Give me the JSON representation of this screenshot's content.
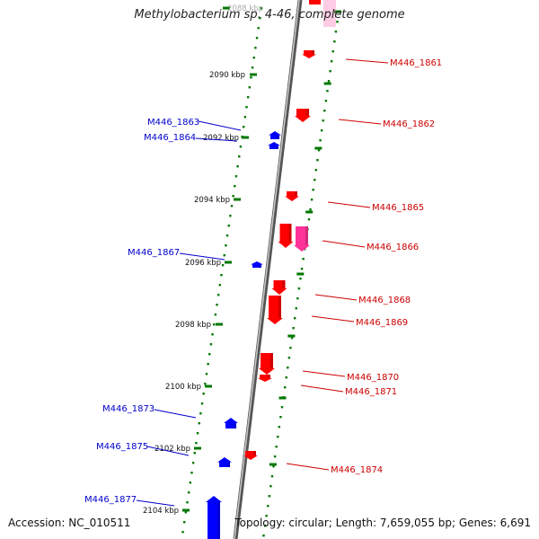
{
  "title": "Methylobacterium sp. 4-46, complete genome",
  "footer": {
    "accession": "Accession: NC_010511",
    "topology": "Topology: circular; Length: 7,659,055 bp; Genes: 6,691"
  },
  "colors": {
    "forward_gene": "#ff0000",
    "forward_rna": "#ff3399",
    "reverse_gene": "#0000ff",
    "tick": "#007700",
    "axis": "#888888",
    "forward_label": "#cc0000",
    "reverse_label": "#0000cc"
  },
  "kbp_ticks": [
    {
      "label": "2088 kbp"
    },
    {
      "label": "2090 kbp"
    },
    {
      "label": "2092 kbp"
    },
    {
      "label": "2094 kbp"
    },
    {
      "label": "2096 kbp"
    },
    {
      "label": "2098 kbp"
    },
    {
      "label": "2100 kbp"
    },
    {
      "label": "2102 kbp"
    },
    {
      "label": "2104 kbp"
    }
  ],
  "reverse_genes": [
    {
      "name": "M446_1863"
    },
    {
      "name": "M446_1864"
    },
    {
      "name": "M446_1867"
    },
    {
      "name": "M446_1873"
    },
    {
      "name": "M446_1875"
    },
    {
      "name": "M446_1877"
    }
  ],
  "forward_genes": [
    {
      "name": "M446_1861"
    },
    {
      "name": "M446_1862"
    },
    {
      "name": "M446_1865"
    },
    {
      "name": "M446_1866"
    },
    {
      "name": "M446_1868"
    },
    {
      "name": "M446_1869"
    },
    {
      "name": "M446_1870"
    },
    {
      "name": "M446_1871"
    },
    {
      "name": "M446_1874"
    }
  ]
}
